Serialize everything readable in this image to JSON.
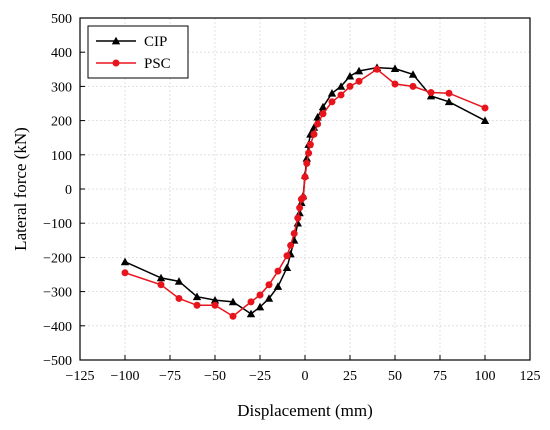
{
  "chart_data": {
    "type": "line",
    "xlabel": "Displacement (mm)",
    "ylabel": "Lateral force (kN)",
    "xlim": [
      -125,
      125
    ],
    "ylim": [
      -500,
      500
    ],
    "xticks": [
      -125,
      -100,
      -75,
      -50,
      -25,
      0,
      25,
      50,
      75,
      100,
      125
    ],
    "yticks": [
      -500,
      -400,
      -300,
      -200,
      -100,
      0,
      100,
      200,
      300,
      400,
      500
    ],
    "grid": true,
    "legend_position": "top-left",
    "series": [
      {
        "name": "CIP",
        "color": "#000000",
        "marker": "triangle",
        "x": [
          -100,
          -80,
          -70,
          -60,
          -50,
          -40,
          -30,
          -25,
          -20,
          -15,
          -10,
          -8,
          -6,
          -4,
          -3,
          -2,
          -1,
          0,
          1,
          2,
          3,
          5,
          7,
          10,
          15,
          20,
          25,
          30,
          40,
          50,
          60,
          70,
          80,
          100
        ],
        "y": [
          -213,
          -260,
          -270,
          -315,
          -325,
          -330,
          -365,
          -345,
          -320,
          -285,
          -230,
          -190,
          -150,
          -100,
          -70,
          -40,
          -20,
          40,
          90,
          130,
          160,
          180,
          210,
          240,
          280,
          300,
          330,
          345,
          355,
          352,
          335,
          272,
          255,
          200
        ]
      },
      {
        "name": "PSC",
        "color": "#e8141c",
        "marker": "circle",
        "x": [
          -100,
          -80,
          -70,
          -60,
          -50,
          -40,
          -30,
          -25,
          -20,
          -15,
          -10,
          -8,
          -6,
          -4,
          -3,
          -2,
          -1,
          0,
          1,
          2,
          3,
          5,
          7,
          10,
          15,
          20,
          25,
          30,
          40,
          50,
          60,
          70,
          80,
          100
        ],
        "y": [
          -245,
          -280,
          -320,
          -340,
          -340,
          -372,
          -330,
          -310,
          -280,
          -240,
          -195,
          -165,
          -130,
          -85,
          -55,
          -30,
          -25,
          35,
          75,
          105,
          130,
          160,
          190,
          220,
          255,
          275,
          300,
          315,
          350,
          307,
          300,
          282,
          280,
          237
        ]
      }
    ]
  }
}
